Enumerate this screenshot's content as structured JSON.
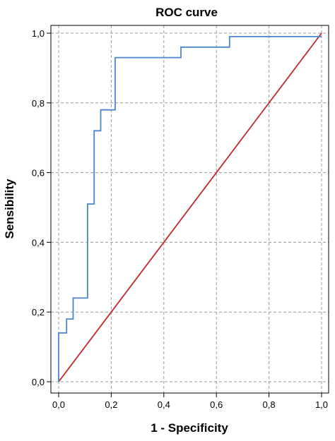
{
  "chart_data": {
    "type": "line",
    "title": "ROC curve",
    "xlabel": "1 - Specificity",
    "ylabel": "Sensibility",
    "xlim": [
      0,
      1
    ],
    "ylim": [
      0,
      1
    ],
    "x_ticks": [
      "0,0",
      "0,2",
      "0,4",
      "0,6",
      "0,8",
      "1,0"
    ],
    "y_ticks": [
      "0,0",
      "0,2",
      "0,4",
      "0,6",
      "0,8",
      "1,0"
    ],
    "x_tick_values": [
      0,
      0.2,
      0.4,
      0.6,
      0.8,
      1.0
    ],
    "y_tick_values": [
      0,
      0.2,
      0.4,
      0.6,
      0.8,
      1.0
    ],
    "grid": true,
    "series": [
      {
        "color": "#4a86d0",
        "step": true,
        "x": [
          0,
          0,
          0.03,
          0.03,
          0.055,
          0.055,
          0.11,
          0.11,
          0.135,
          0.135,
          0.16,
          0.16,
          0.215,
          0.215,
          0.465,
          0.465,
          0.65,
          0.65,
          1.0
        ],
        "y": [
          0,
          0.14,
          0.14,
          0.18,
          0.18,
          0.24,
          0.24,
          0.51,
          0.51,
          0.72,
          0.72,
          0.78,
          0.78,
          0.93,
          0.93,
          0.96,
          0.96,
          0.99,
          0.99
        ]
      },
      {
        "color": "#c0272d",
        "step": false,
        "x": [
          0,
          1
        ],
        "y": [
          0,
          1
        ]
      }
    ]
  }
}
